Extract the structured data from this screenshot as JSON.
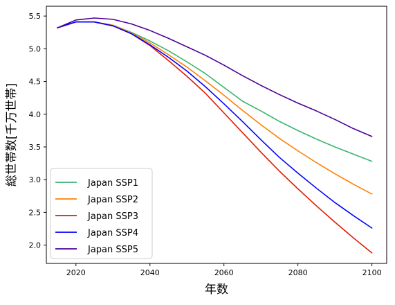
{
  "chart_data": {
    "type": "line",
    "title": "",
    "xlabel": "年数",
    "ylabel": "総世帯数[千万世帯]",
    "xlim": [
      2012,
      2104
    ],
    "ylim": [
      1.72,
      5.65
    ],
    "x_ticks": [
      2020,
      2040,
      2060,
      2080,
      2100
    ],
    "y_ticks": [
      2.0,
      2.5,
      3.0,
      3.5,
      4.0,
      4.5,
      5.0,
      5.5
    ],
    "x_tick_labels": [
      "2020",
      "2040",
      "2060",
      "2080",
      "2100"
    ],
    "y_tick_labels": [
      "2.0",
      "2.5",
      "3.0",
      "3.5",
      "4.0",
      "4.5",
      "5.0",
      "5.5"
    ],
    "grid": false,
    "legend_position": "lower-left",
    "x": [
      2015,
      2020,
      2025,
      2030,
      2035,
      2040,
      2045,
      2050,
      2055,
      2060,
      2065,
      2070,
      2075,
      2080,
      2085,
      2090,
      2095,
      2100
    ],
    "series": [
      {
        "name": "Japan SSP1",
        "color": "#3cb371",
        "values": [
          5.32,
          5.41,
          5.41,
          5.36,
          5.25,
          5.12,
          4.97,
          4.8,
          4.62,
          4.41,
          4.2,
          4.05,
          3.89,
          3.75,
          3.62,
          3.5,
          3.39,
          3.28
        ]
      },
      {
        "name": "Japan SSP2",
        "color": "#ff8000",
        "values": [
          5.32,
          5.41,
          5.41,
          5.36,
          5.24,
          5.09,
          4.91,
          4.72,
          4.51,
          4.29,
          4.06,
          3.84,
          3.63,
          3.44,
          3.26,
          3.09,
          2.93,
          2.78
        ]
      },
      {
        "name": "Japan SSP3",
        "color": "#e41a00",
        "values": [
          5.32,
          5.41,
          5.41,
          5.35,
          5.23,
          5.05,
          4.82,
          4.58,
          4.32,
          4.02,
          3.72,
          3.42,
          3.13,
          2.86,
          2.6,
          2.35,
          2.11,
          1.88
        ]
      },
      {
        "name": "Japan SSP4",
        "color": "#0000ff",
        "values": [
          5.32,
          5.41,
          5.41,
          5.35,
          5.23,
          5.06,
          4.87,
          4.66,
          4.42,
          4.16,
          3.89,
          3.61,
          3.34,
          3.1,
          2.87,
          2.65,
          2.45,
          2.26
        ]
      },
      {
        "name": "Japan SSP5",
        "color": "#4b0096",
        "values": [
          5.32,
          5.44,
          5.47,
          5.45,
          5.38,
          5.28,
          5.16,
          5.03,
          4.9,
          4.75,
          4.59,
          4.44,
          4.3,
          4.17,
          4.05,
          3.92,
          3.78,
          3.66
        ]
      }
    ]
  }
}
